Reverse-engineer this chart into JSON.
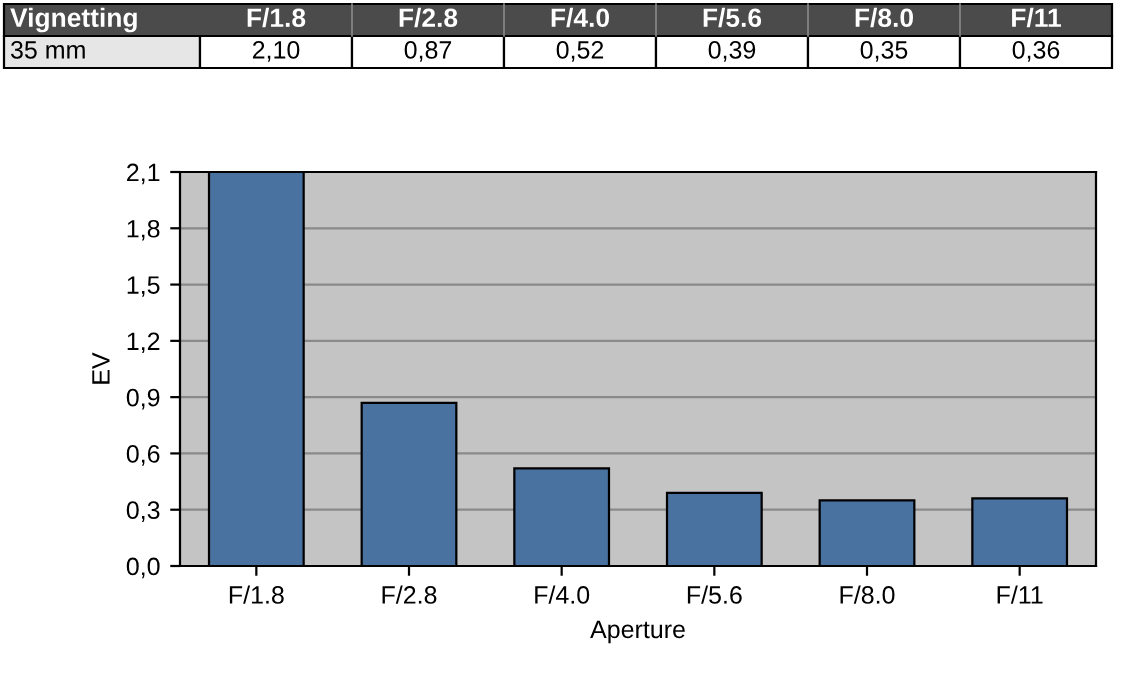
{
  "chart_data": {
    "type": "bar",
    "title": "Vignetting",
    "xlabel": "Aperture",
    "ylabel": "EV",
    "categories": [
      "F/1.8",
      "F/2.8",
      "F/4.0",
      "F/5.6",
      "F/8.0",
      "F/11"
    ],
    "series": [
      {
        "name": "35 mm",
        "color": "#4a72a0",
        "values": [
          2.1,
          0.87,
          0.52,
          0.39,
          0.35,
          0.36
        ],
        "value_labels": [
          "2,10",
          "0,87",
          "0,52",
          "0,39",
          "0,35",
          "0,36"
        ]
      }
    ],
    "ylim": [
      0,
      2.1
    ],
    "yticks": [
      {
        "value": 0,
        "label": "0,0"
      },
      {
        "value": 0.3,
        "label": "0,3"
      },
      {
        "value": 0.6,
        "label": "0,6"
      },
      {
        "value": 0.9,
        "label": "0,9"
      },
      {
        "value": 1.2,
        "label": "1,2"
      },
      {
        "value": 1.5,
        "label": "1,5"
      },
      {
        "value": 1.8,
        "label": "1,8"
      },
      {
        "value": 2.1,
        "label": "2,1"
      }
    ],
    "grid": "y",
    "legend": false
  }
}
